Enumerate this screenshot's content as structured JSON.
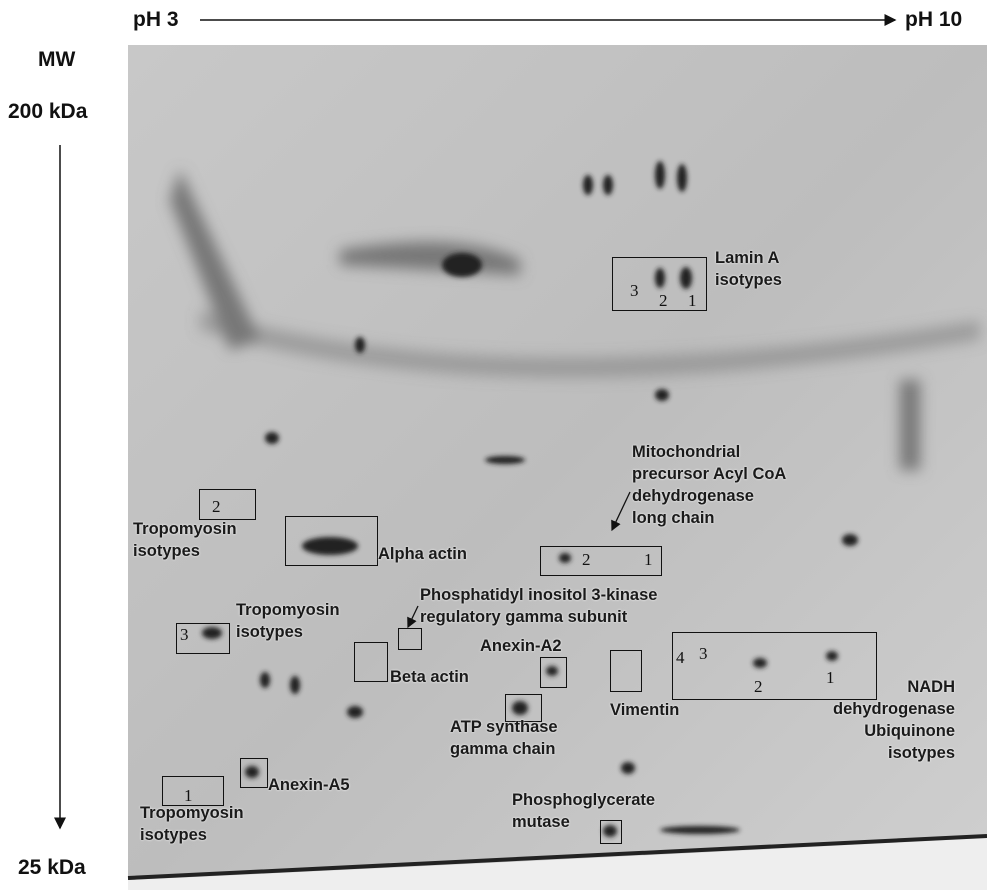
{
  "header": {
    "ph_start": "pH 3",
    "ph_end": "pH 10"
  },
  "axis": {
    "title": "MW",
    "top": "200 kDa",
    "bottom": "25 kDa"
  },
  "proteins": [
    {
      "label": [
        "Lamin A",
        "isotypes"
      ],
      "spots": [
        "3",
        "2",
        "1"
      ]
    },
    {
      "label": [
        "Mitochondrial",
        "precursor Acyl CoA",
        "dehydrogenase",
        "long chain"
      ],
      "spots": [
        "2",
        "1"
      ]
    },
    {
      "label": [
        "Tropomyosin",
        "isotypes"
      ],
      "spots": [
        "2"
      ]
    },
    {
      "label": [
        "Alpha actin"
      ]
    },
    {
      "label": [
        "Tropomyosin",
        "isotypes"
      ],
      "spots": [
        "3"
      ]
    },
    {
      "label": [
        "Phosphatidyl inositol 3-kinase",
        "regulatory gamma subunit"
      ]
    },
    {
      "label": [
        "Beta actin"
      ]
    },
    {
      "label": [
        "Anexin-A2"
      ]
    },
    {
      "label": [
        "Vimentin"
      ]
    },
    {
      "label": [
        "ATP synthase",
        "gamma chain"
      ]
    },
    {
      "label": [
        "NADH",
        "dehydrogenase",
        "Ubiquinone",
        "isotypes"
      ],
      "spots": [
        "4",
        "3",
        "2",
        "1"
      ]
    },
    {
      "label": [
        "Anexin-A5"
      ]
    },
    {
      "label": [
        "Tropomyosin",
        "isotypes"
      ],
      "spots": [
        "1"
      ]
    },
    {
      "label": [
        "Phosphoglycerate",
        "mutase"
      ]
    }
  ]
}
